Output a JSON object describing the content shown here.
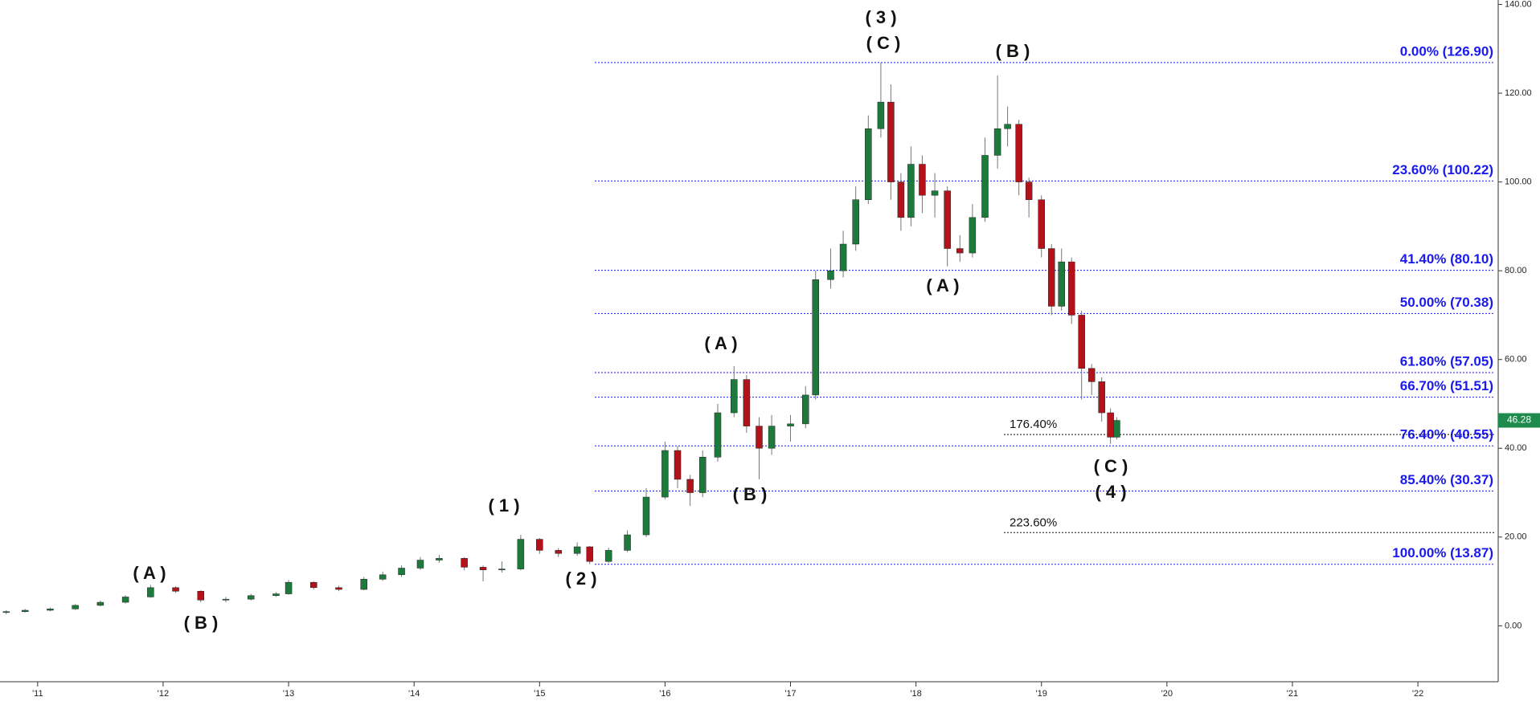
{
  "chart_data": {
    "type": "candlestick",
    "x": [
      2010.75,
      2010.9,
      2011.1,
      2011.3,
      2011.5,
      2011.7,
      2011.9,
      2012.1,
      2012.3,
      2012.5,
      2012.7,
      2012.9,
      2013.0,
      2013.2,
      2013.4,
      2013.6,
      2013.75,
      2013.9,
      2014.05,
      2014.2,
      2014.4,
      2014.55,
      2014.7,
      2014.85,
      2015.0,
      2015.15,
      2015.3,
      2015.4,
      2015.55,
      2015.7,
      2015.85,
      2016.0,
      2016.1,
      2016.2,
      2016.3,
      2016.42,
      2016.55,
      2016.65,
      2016.75,
      2016.85,
      2017.0,
      2017.12,
      2017.2,
      2017.32,
      2017.42,
      2017.52,
      2017.62,
      2017.72,
      2017.8,
      2017.88,
      2017.96,
      2018.05,
      2018.15,
      2018.25,
      2018.35,
      2018.45,
      2018.55,
      2018.65,
      2018.73,
      2018.82,
      2018.9,
      2019.0,
      2019.08,
      2019.16,
      2019.24,
      2019.32,
      2019.4,
      2019.48,
      2019.55,
      2019.6
    ],
    "open": [
      3.0,
      3.2,
      3.5,
      3.8,
      4.6,
      5.3,
      6.5,
      8.6,
      7.8,
      5.8,
      6.0,
      6.8,
      7.2,
      9.8,
      8.6,
      8.2,
      10.5,
      11.5,
      13.0,
      14.8,
      15.2,
      13.2,
      12.6,
      12.8,
      19.5,
      17.0,
      16.3,
      17.8,
      14.5,
      17.0,
      20.5,
      29.0,
      39.5,
      33.0,
      30.0,
      38.0,
      48.0,
      55.5,
      45.0,
      40.0,
      45.0,
      45.5,
      52.0,
      78.0,
      80.0,
      86.0,
      96.0,
      112.0,
      118.0,
      100.0,
      92.0,
      104.0,
      97.0,
      98.0,
      85.0,
      84.0,
      92.0,
      106.0,
      112.0,
      113.0,
      100.0,
      96.0,
      85.0,
      72.0,
      82.0,
      70.0,
      58.0,
      55.0,
      48.0,
      42.5
    ],
    "high": [
      3.5,
      3.8,
      4.1,
      4.9,
      5.7,
      6.9,
      9.2,
      8.9,
      8.0,
      6.5,
      7.2,
      7.6,
      10.3,
      10.0,
      9.0,
      11.0,
      12.2,
      13.6,
      15.5,
      16.0,
      15.5,
      13.6,
      14.5,
      20.5,
      19.8,
      17.5,
      18.8,
      18.0,
      17.6,
      21.5,
      31.0,
      41.5,
      40.5,
      34.0,
      39.5,
      50.0,
      58.5,
      56.5,
      47.0,
      47.5,
      47.5,
      54.0,
      80.0,
      85.0,
      89.0,
      99.0,
      115.0,
      126.9,
      122.0,
      102.0,
      108.0,
      106.0,
      102.0,
      99.0,
      88.0,
      95.0,
      110.0,
      124.0,
      117.0,
      114.0,
      101.0,
      97.0,
      86.0,
      85.0,
      83.0,
      71.0,
      59.0,
      56.0,
      49.0,
      47.0
    ],
    "low": [
      2.6,
      3.0,
      3.3,
      3.6,
      4.4,
      5.0,
      6.3,
      7.4,
      5.3,
      5.3,
      5.7,
      6.5,
      7.0,
      8.2,
      7.8,
      8.0,
      10.1,
      11.0,
      12.6,
      14.2,
      12.5,
      10.0,
      12.0,
      12.5,
      16.2,
      15.5,
      15.8,
      13.9,
      14.2,
      16.6,
      20.0,
      28.5,
      31.0,
      27.0,
      29.0,
      37.0,
      47.0,
      43.5,
      33.0,
      38.5,
      41.5,
      44.5,
      51.0,
      76.0,
      78.5,
      84.5,
      95.0,
      110.0,
      96.0,
      89.0,
      90.0,
      93.0,
      92.0,
      81.0,
      82.0,
      83.0,
      91.0,
      103.0,
      108.0,
      97.0,
      92.0,
      83.0,
      70.0,
      71.0,
      68.0,
      51.0,
      52.0,
      46.0,
      41.0,
      42.0
    ],
    "close": [
      3.2,
      3.5,
      3.8,
      4.6,
      5.3,
      6.5,
      8.6,
      7.8,
      5.8,
      6.0,
      6.8,
      7.2,
      9.8,
      8.6,
      8.2,
      10.5,
      11.5,
      13.0,
      14.8,
      15.2,
      13.2,
      12.6,
      12.8,
      19.5,
      17.0,
      16.3,
      17.8,
      14.5,
      17.0,
      20.5,
      29.0,
      39.5,
      33.0,
      30.0,
      38.0,
      48.0,
      55.5,
      45.0,
      40.0,
      45.0,
      45.5,
      52.0,
      78.0,
      80.0,
      86.0,
      96.0,
      112.0,
      118.0,
      100.0,
      92.0,
      104.0,
      97.0,
      98.0,
      85.0,
      84.0,
      92.0,
      106.0,
      112.0,
      113.0,
      100.0,
      96.0,
      85.0,
      72.0,
      82.0,
      70.0,
      58.0,
      55.0,
      48.0,
      42.5,
      46.28
    ],
    "up_color": "#1e7a3c",
    "down_color": "#b3121a",
    "xlim": [
      2010.7,
      2022.64
    ],
    "xticks": [
      {
        "value": 2011,
        "label": "'11"
      },
      {
        "value": 2012,
        "label": "'12"
      },
      {
        "value": 2013,
        "label": "'13"
      },
      {
        "value": 2014,
        "label": "'14"
      },
      {
        "value": 2015,
        "label": "'15"
      },
      {
        "value": 2016,
        "label": "'16"
      },
      {
        "value": 2017,
        "label": "'17"
      },
      {
        "value": 2018,
        "label": "'18"
      },
      {
        "value": 2019,
        "label": "'19"
      },
      {
        "value": 2020,
        "label": "'20"
      },
      {
        "value": 2021,
        "label": "'21"
      },
      {
        "value": 2022,
        "label": "'22"
      }
    ],
    "ylim": [
      -12.6,
      141
    ],
    "yticks": [
      {
        "value": 0,
        "label": "0.00"
      },
      {
        "value": 20,
        "label": "20.00"
      },
      {
        "value": 40,
        "label": "40.00"
      },
      {
        "value": 60,
        "label": "60.00"
      },
      {
        "value": 80,
        "label": "80.00"
      },
      {
        "value": 100,
        "label": "100.00"
      },
      {
        "value": 120,
        "label": "120.00"
      },
      {
        "value": 140,
        "label": "140.00"
      }
    ],
    "levels": [
      {
        "label": "0.00% (126.90)",
        "value": 126.9
      },
      {
        "label": "23.60% (100.22)",
        "value": 100.22
      },
      {
        "label": "41.40% (80.10)",
        "value": 80.1
      },
      {
        "label": "50.00% (70.38)",
        "value": 70.38
      },
      {
        "label": "61.80% (57.05)",
        "value": 57.05
      },
      {
        "label": "66.70% (51.51)",
        "value": 51.51
      },
      {
        "label": "76.40% (40.55)",
        "value": 40.55
      },
      {
        "label": "85.40% (30.37)",
        "value": 30.37
      },
      {
        "label": "100.00% (13.87)",
        "value": 13.87
      }
    ],
    "level_color": "#1a1aee",
    "extensions": [
      {
        "label": "176.40%",
        "value": 43.1
      },
      {
        "label": "223.60%",
        "value": 21.0
      }
    ],
    "last_price": 46.28,
    "wave_labels": [
      "( A )",
      "( B )",
      "( 1 )",
      "( 2 )",
      "( A )",
      "( B )",
      "( 3 )",
      "( C )",
      "( A )",
      "( B )",
      "( C )",
      "( 4 )"
    ]
  }
}
